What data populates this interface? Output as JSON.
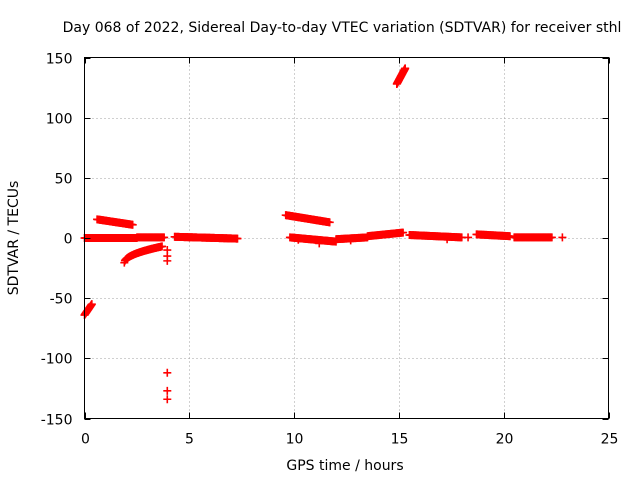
{
  "chart_data": {
    "type": "scatter",
    "title": "Day 068 of 2022, Sidereal Day-to-day VTEC variation (SDTVAR) for receiver sthl",
    "xlabel": "GPS time / hours",
    "ylabel": "SDTVAR / TECUs",
    "xlim": [
      0,
      25
    ],
    "ylim": [
      -150,
      150
    ],
    "xticks": [
      0,
      5,
      10,
      15,
      20,
      25
    ],
    "yticks": [
      -150,
      -100,
      -50,
      0,
      50,
      100,
      150
    ],
    "grid": true,
    "marker": "+",
    "color": "#ff0000",
    "segments": [
      {
        "name": "near-zero-early",
        "x0": 0.0,
        "y0": 0.0,
        "x1": 2.5,
        "y1": 0.0,
        "step": 0.03
      },
      {
        "name": "near-zero-early-2",
        "x0": 2.5,
        "y0": 0.5,
        "x1": 3.8,
        "y1": 0.5,
        "step": 0.04
      },
      {
        "name": "near-zero-mid",
        "x0": 4.3,
        "y0": 1.0,
        "x1": 7.3,
        "y1": -0.5,
        "step": 0.03
      },
      {
        "name": "near-zero-late-1",
        "x0": 9.8,
        "y0": 0.5,
        "x1": 12.0,
        "y1": -3.0,
        "step": 0.03
      },
      {
        "name": "near-zero-late-2",
        "x0": 12.0,
        "y0": -1.0,
        "x1": 13.5,
        "y1": 0.5,
        "step": 0.04
      },
      {
        "name": "rise-to-15",
        "x0": 13.5,
        "y0": 1.5,
        "x1": 15.2,
        "y1": 4.5,
        "step": 0.04
      },
      {
        "name": "near-zero-16-18",
        "x0": 15.5,
        "y0": 2.5,
        "x1": 18.0,
        "y1": 0.5,
        "step": 0.04
      },
      {
        "name": "near-zero-19-20",
        "x0": 18.7,
        "y0": 3.0,
        "x1": 20.3,
        "y1": 1.5,
        "step": 0.04
      },
      {
        "name": "near-zero-21-22",
        "x0": 20.5,
        "y0": 0.5,
        "x1": 22.3,
        "y1": 0.5,
        "step": 0.04
      },
      {
        "name": "arc-15-to-11",
        "x0": 0.6,
        "y0": 15.5,
        "x1": 2.3,
        "y1": 11.0,
        "step": 0.03
      },
      {
        "name": "arc-19-to-13",
        "x0": 9.6,
        "y0": 19.0,
        "x1": 11.7,
        "y1": 13.0,
        "step": 0.03
      },
      {
        "name": "arc-neg20-to-neg7",
        "x0": 1.9,
        "y0": -20.5,
        "x1": 3.7,
        "y1": -7.0,
        "step": 0.03,
        "curve": "sqrt"
      },
      {
        "name": "drop-early",
        "x0": 0.0,
        "y0": -64.0,
        "x1": 0.35,
        "y1": -55.0,
        "step": 0.02
      },
      {
        "name": "spike-15",
        "x0": 14.9,
        "y0": 128.0,
        "x1": 15.3,
        "y1": 141.0,
        "step": 0.015
      }
    ],
    "points": [
      {
        "x": 3.95,
        "y": -10
      },
      {
        "x": 3.95,
        "y": -15
      },
      {
        "x": 3.95,
        "y": -19
      },
      {
        "x": 3.95,
        "y": -112
      },
      {
        "x": 3.95,
        "y": -127
      },
      {
        "x": 3.95,
        "y": -134
      },
      {
        "x": 10.2,
        "y": -1.5
      },
      {
        "x": 11.2,
        "y": -4.5
      },
      {
        "x": 12.7,
        "y": -2.0
      },
      {
        "x": 17.3,
        "y": -1.0
      },
      {
        "x": 18.3,
        "y": 0.5
      },
      {
        "x": 22.8,
        "y": 0.5
      }
    ]
  }
}
